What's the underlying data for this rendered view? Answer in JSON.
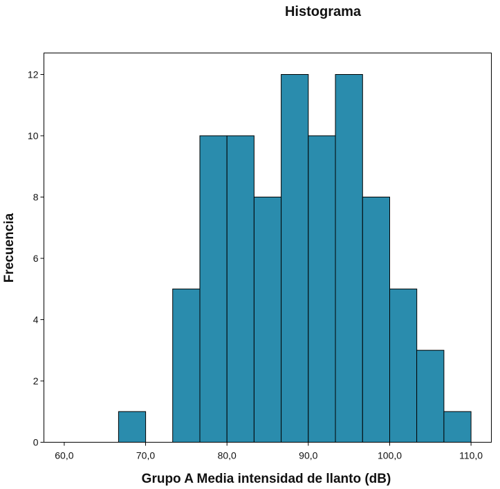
{
  "chart_data": {
    "type": "bar",
    "title": "Histograma",
    "xlabel": "Grupo A Media intensidad de llanto (dB)",
    "ylabel": "Frecuencia",
    "xlim": [
      57.5,
      112.5
    ],
    "ylim": [
      0,
      12.7
    ],
    "x_ticks": [
      {
        "value": 60,
        "label": "60,0"
      },
      {
        "value": 70,
        "label": "70,0"
      },
      {
        "value": 80,
        "label": "80,0"
      },
      {
        "value": 90,
        "label": "90,0"
      },
      {
        "value": 100,
        "label": "100,0"
      },
      {
        "value": 110,
        "label": "110,0"
      }
    ],
    "y_ticks": [
      {
        "value": 0,
        "label": "0"
      },
      {
        "value": 2,
        "label": "2"
      },
      {
        "value": 4,
        "label": "4"
      },
      {
        "value": 6,
        "label": "6"
      },
      {
        "value": 8,
        "label": "8"
      },
      {
        "value": 10,
        "label": "10"
      },
      {
        "value": 12,
        "label": "12"
      }
    ],
    "bins": [
      {
        "start": 66.67,
        "end": 70.0,
        "count": 1
      },
      {
        "start": 73.33,
        "end": 76.67,
        "count": 5
      },
      {
        "start": 76.67,
        "end": 80.0,
        "count": 10
      },
      {
        "start": 80.0,
        "end": 83.33,
        "count": 10
      },
      {
        "start": 83.33,
        "end": 86.67,
        "count": 8
      },
      {
        "start": 86.67,
        "end": 90.0,
        "count": 12
      },
      {
        "start": 90.0,
        "end": 93.33,
        "count": 10
      },
      {
        "start": 93.33,
        "end": 96.67,
        "count": 12
      },
      {
        "start": 96.67,
        "end": 100.0,
        "count": 8
      },
      {
        "start": 100.0,
        "end": 103.33,
        "count": 5
      },
      {
        "start": 103.33,
        "end": 106.67,
        "count": 3
      },
      {
        "start": 106.67,
        "end": 110.0,
        "count": 1
      }
    ],
    "bar_color": "#2a8cad",
    "grid": false,
    "legend": "none"
  }
}
